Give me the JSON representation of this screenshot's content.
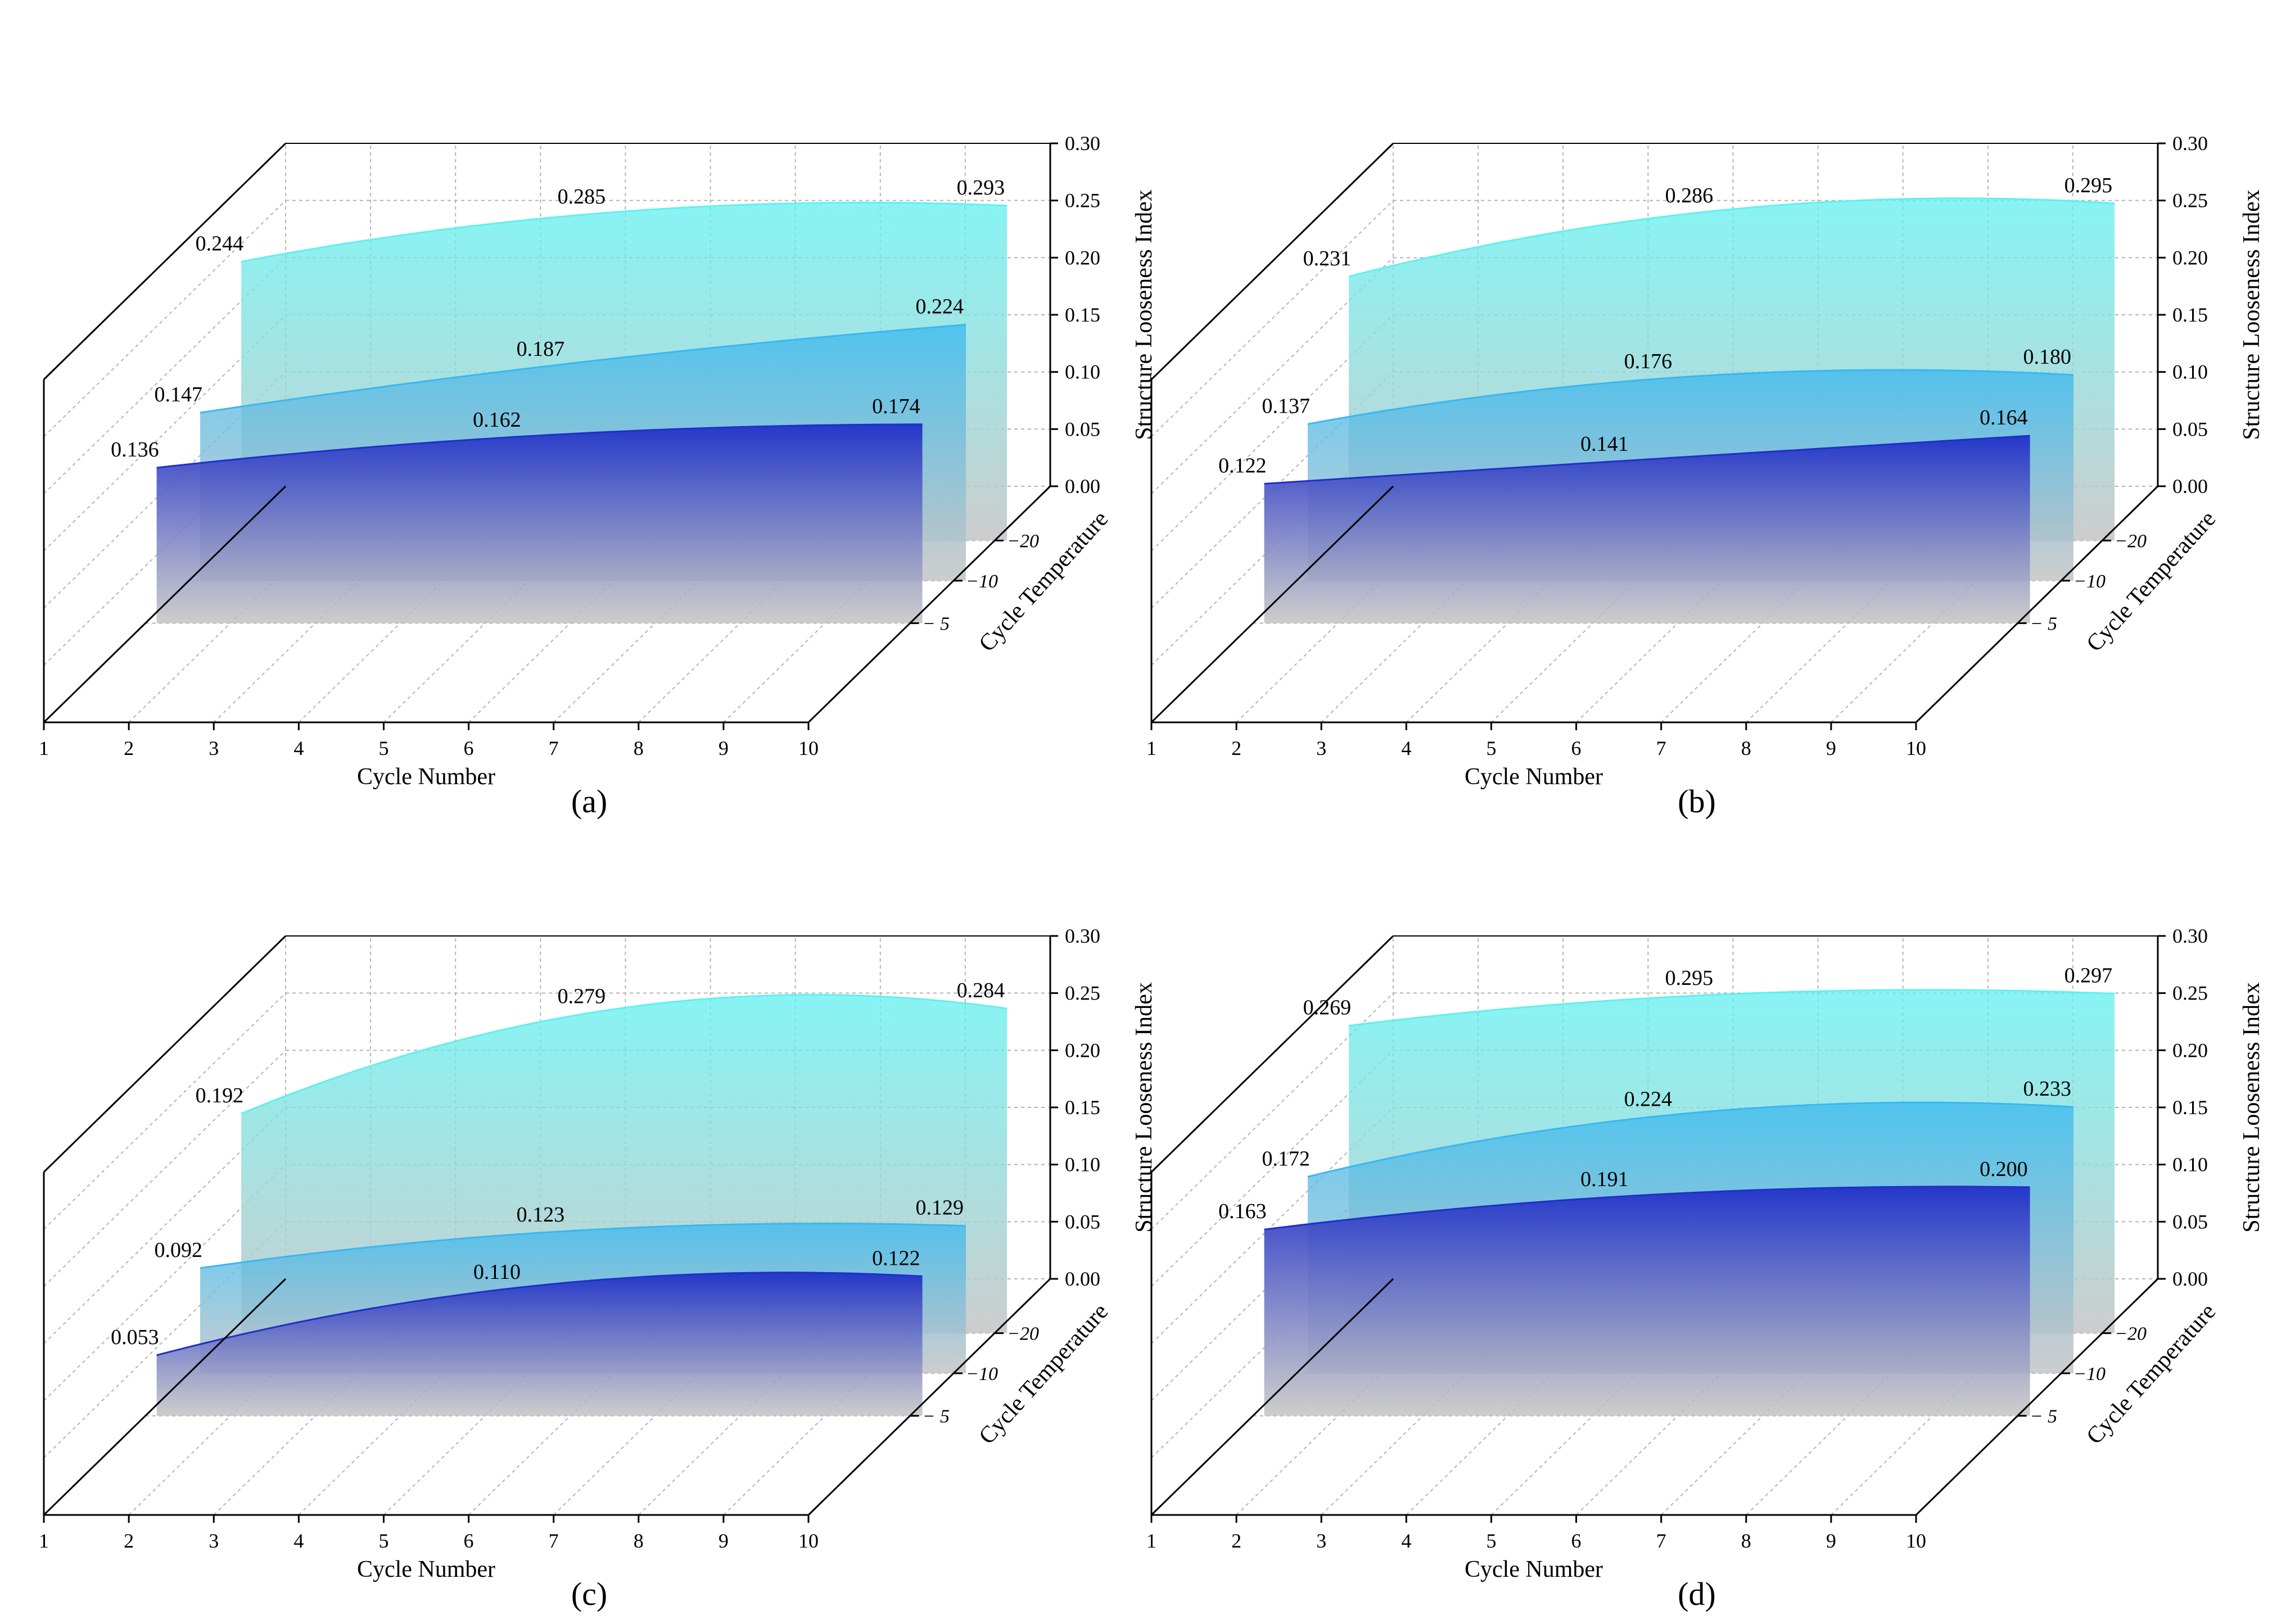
{
  "chart_data": [
    {
      "type": "area",
      "panel_label": "(a)",
      "xlabel": "Cycle Number",
      "ylabel": "Cycle Temperature",
      "zlabel": "Structure Looseness Index",
      "x_ticks": [
        "1",
        "2",
        "3",
        "4",
        "5",
        "6",
        "7",
        "8",
        "9",
        "10"
      ],
      "z_ticks": [
        "0.00",
        "0.05",
        "0.10",
        "0.15",
        "0.20",
        "0.25",
        "0.30"
      ],
      "zlim": [
        0,
        0.3
      ],
      "temperature_ticks": [
        "− 5",
        "−10",
        "−20"
      ],
      "series": [
        {
          "name": "−5",
          "color": "#2030c8",
          "x": [
            1,
            5,
            10
          ],
          "values": [
            0.136,
            0.162,
            0.174
          ],
          "labels": [
            "0.136",
            "0.162",
            "0.174"
          ]
        },
        {
          "name": "−10",
          "color": "#38b8f0",
          "x": [
            1,
            5,
            10
          ],
          "values": [
            0.147,
            0.187,
            0.224
          ],
          "labels": [
            "0.147",
            "0.187",
            "0.224"
          ]
        },
        {
          "name": "−20",
          "color": "#60f0f0",
          "x": [
            1,
            5,
            10
          ],
          "values": [
            0.244,
            0.285,
            0.293
          ],
          "labels": [
            "0.244",
            "0.285",
            "0.293"
          ]
        }
      ]
    },
    {
      "type": "area",
      "panel_label": "(b)",
      "xlabel": "Cycle Number",
      "ylabel": "Cycle Temperature",
      "zlabel": "Structure Looseness Index",
      "x_ticks": [
        "1",
        "2",
        "3",
        "4",
        "5",
        "6",
        "7",
        "8",
        "9",
        "10"
      ],
      "z_ticks": [
        "0.00",
        "0.05",
        "0.10",
        "0.15",
        "0.20",
        "0.25",
        "0.30"
      ],
      "zlim": [
        0,
        0.3
      ],
      "temperature_ticks": [
        "− 5",
        "−10",
        "−20"
      ],
      "series": [
        {
          "name": "−5",
          "color": "#2030c8",
          "x": [
            1,
            5,
            10
          ],
          "values": [
            0.122,
            0.141,
            0.164
          ],
          "labels": [
            "0.122",
            "0.141",
            "0.164"
          ]
        },
        {
          "name": "−10",
          "color": "#38b8f0",
          "x": [
            1,
            5,
            10
          ],
          "values": [
            0.137,
            0.176,
            0.18
          ],
          "labels": [
            "0.137",
            "0.176",
            "0.180"
          ]
        },
        {
          "name": "−20",
          "color": "#60f0f0",
          "x": [
            1,
            5,
            10
          ],
          "values": [
            0.231,
            0.286,
            0.295
          ],
          "labels": [
            "0.231",
            "0.286",
            "0.295"
          ]
        }
      ]
    },
    {
      "type": "area",
      "panel_label": "(c)",
      "xlabel": "Cycle Number",
      "ylabel": "Cycle Temperature",
      "zlabel": "Structure Looseness Index",
      "x_ticks": [
        "1",
        "2",
        "3",
        "4",
        "5",
        "6",
        "7",
        "8",
        "9",
        "10"
      ],
      "z_ticks": [
        "0.00",
        "0.05",
        "0.10",
        "0.15",
        "0.20",
        "0.25",
        "0.30"
      ],
      "zlim": [
        0,
        0.3
      ],
      "temperature_ticks": [
        "− 5",
        "−10",
        "−20"
      ],
      "series": [
        {
          "name": "−5",
          "color": "#2030c8",
          "x": [
            1,
            5,
            10
          ],
          "values": [
            0.053,
            0.11,
            0.122
          ],
          "labels": [
            "0.053",
            "0.110",
            "0.122"
          ]
        },
        {
          "name": "−10",
          "color": "#38b8f0",
          "x": [
            1,
            5,
            10
          ],
          "values": [
            0.092,
            0.123,
            0.129
          ],
          "labels": [
            "0.092",
            "0.123",
            "0.129"
          ]
        },
        {
          "name": "−20",
          "color": "#60f0f0",
          "x": [
            1,
            5,
            10
          ],
          "values": [
            0.192,
            0.279,
            0.284
          ],
          "labels": [
            "0.192",
            "0.279",
            "0.284"
          ]
        }
      ]
    },
    {
      "type": "area",
      "panel_label": "(d)",
      "xlabel": "Cycle Number",
      "ylabel": "Cycle Temperature",
      "zlabel": "Structure Looseness Index",
      "x_ticks": [
        "1",
        "2",
        "3",
        "4",
        "5",
        "6",
        "7",
        "8",
        "9",
        "10"
      ],
      "z_ticks": [
        "0.00",
        "0.05",
        "0.10",
        "0.15",
        "0.20",
        "0.25",
        "0.30"
      ],
      "zlim": [
        0,
        0.3
      ],
      "temperature_ticks": [
        "− 5",
        "−10",
        "−20"
      ],
      "series": [
        {
          "name": "−5",
          "color": "#2030c8",
          "x": [
            1,
            5,
            10
          ],
          "values": [
            0.163,
            0.191,
            0.2
          ],
          "labels": [
            "0.163",
            "0.191",
            "0.200"
          ]
        },
        {
          "name": "−10",
          "color": "#38b8f0",
          "x": [
            1,
            5,
            10
          ],
          "values": [
            0.172,
            0.224,
            0.233
          ],
          "labels": [
            "0.172",
            "0.224",
            "0.233"
          ]
        },
        {
          "name": "−20",
          "color": "#60f0f0",
          "x": [
            1,
            5,
            10
          ],
          "values": [
            0.269,
            0.295,
            0.297
          ],
          "labels": [
            "0.269",
            "0.295",
            "0.297"
          ]
        }
      ]
    }
  ]
}
